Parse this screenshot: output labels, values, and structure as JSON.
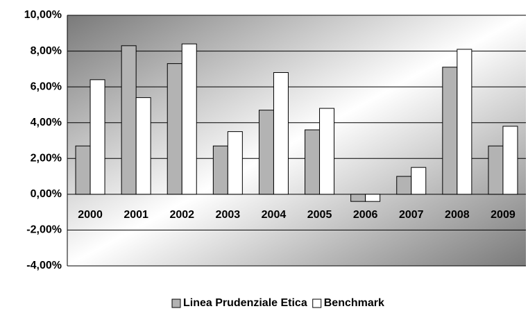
{
  "chart_data": {
    "type": "bar",
    "categories": [
      "2000",
      "2001",
      "2002",
      "2003",
      "2004",
      "2005",
      "2006",
      "2007",
      "2008",
      "2009"
    ],
    "series": [
      {
        "name": "Linea Prudenziale Etica",
        "color": "#b3b3b3",
        "values": [
          2.7,
          8.3,
          7.3,
          2.7,
          4.7,
          3.6,
          -0.4,
          1.0,
          7.1,
          2.7
        ]
      },
      {
        "name": "Benchmark",
        "color": "#ffffff",
        "values": [
          6.4,
          5.4,
          8.4,
          3.5,
          6.8,
          4.8,
          -0.4,
          1.5,
          8.1,
          3.8
        ]
      }
    ],
    "ylim": [
      -4,
      10
    ],
    "yticks": [
      {
        "value": -4,
        "label": "-4,00%"
      },
      {
        "value": -2,
        "label": "-2,00%"
      },
      {
        "value": 0,
        "label": "0,00%"
      },
      {
        "value": 2,
        "label": "2,00%"
      },
      {
        "value": 4,
        "label": "4,00%"
      },
      {
        "value": 6,
        "label": "6,00%"
      },
      {
        "value": 8,
        "label": "8,00%"
      },
      {
        "value": 10,
        "label": "10,00%"
      }
    ],
    "grid": true,
    "legend": "bottom"
  }
}
